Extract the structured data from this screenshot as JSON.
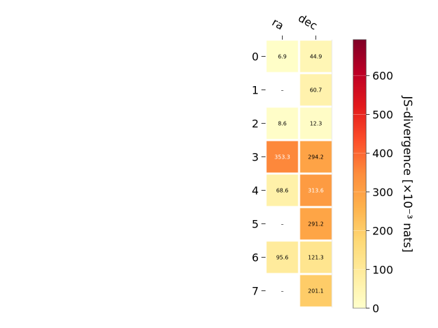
{
  "chart_data": {
    "type": "heatmap",
    "columns": [
      "ra",
      "dec"
    ],
    "rows": [
      "0",
      "1",
      "2",
      "3",
      "4",
      "5",
      "6",
      "7"
    ],
    "values": [
      [
        6.9,
        44.9
      ],
      [
        null,
        60.7
      ],
      [
        8.6,
        12.3
      ],
      [
        353.3,
        294.2
      ],
      [
        68.6,
        313.6
      ],
      [
        null,
        291.2
      ],
      [
        95.6,
        121.3
      ],
      [
        null,
        201.1
      ]
    ],
    "cell_labels": [
      [
        "6.9",
        "44.9"
      ],
      [
        "–",
        "60.7"
      ],
      [
        "8.6",
        "12.3"
      ],
      [
        "353.3",
        "294.2"
      ],
      [
        "68.6",
        "313.6"
      ],
      [
        "–",
        "291.2"
      ],
      [
        "95.6",
        "121.3"
      ],
      [
        "–",
        "201.1"
      ]
    ],
    "colorbar": {
      "label": "JS-divergence [×10⁻³ nats]",
      "vmin": 0,
      "vmax": 693,
      "ticks": [
        0,
        100,
        200,
        300,
        400,
        500,
        600
      ],
      "colormap": "YlOrRd"
    },
    "grid": false
  }
}
